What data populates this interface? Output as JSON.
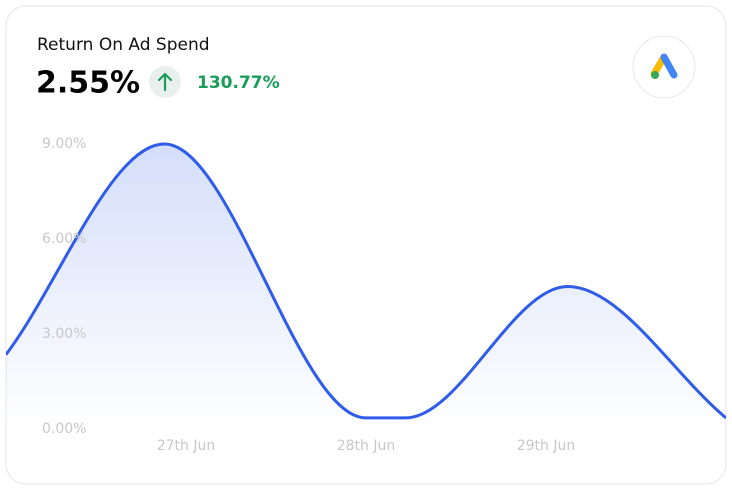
{
  "header": {
    "title": "Return On Ad Spend",
    "value": "2.55%",
    "change": "130.77%"
  },
  "chart_data": {
    "type": "area",
    "x": [
      -1,
      -0.12,
      1,
      1.22,
      2.12,
      3
    ],
    "series": [
      {
        "color": "#2f5ce8",
        "values": [
          2.35,
          9.0,
          0.35,
          0.35,
          4.5,
          0.35
        ]
      }
    ],
    "xlim": [
      -1,
      3
    ],
    "xticks": [
      {
        "value": 0,
        "label": "27th Jun"
      },
      {
        "value": 1,
        "label": "28th Jun"
      },
      {
        "value": 2,
        "label": "29th Jun"
      }
    ],
    "ylim": [
      0,
      9
    ],
    "yticks": [
      {
        "value": 0,
        "label": "0.00%"
      },
      {
        "value": 3,
        "label": "3.00%"
      },
      {
        "value": 6,
        "label": "6.00%"
      },
      {
        "value": 9,
        "label": "9.00%"
      }
    ],
    "grid": false
  }
}
